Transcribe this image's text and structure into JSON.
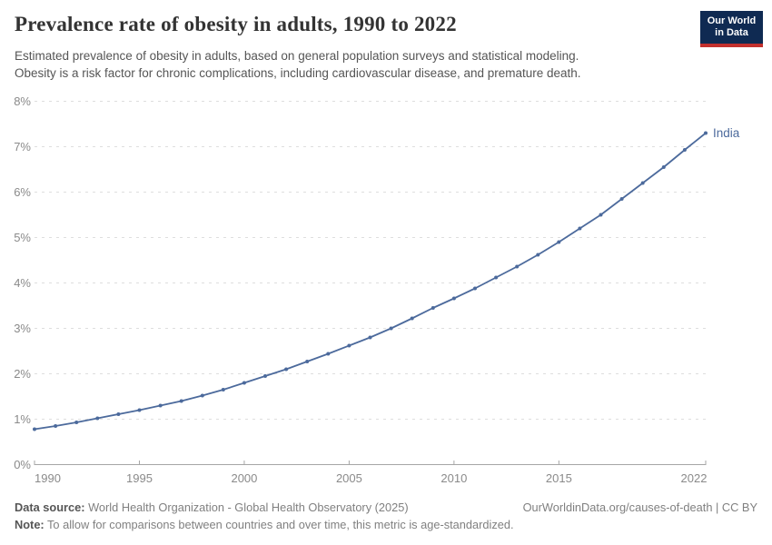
{
  "header": {
    "title": "Prevalence rate of obesity in adults, 1990 to 2022",
    "subtitle_line1": "Estimated prevalence of obesity in adults, based on general population surveys and statistical modeling.",
    "subtitle_line2": "Obesity is a risk factor for chronic complications, including cardiovascular disease, and premature death.",
    "logo": {
      "line1": "Our World",
      "line2": "in Data",
      "bg_color": "#0f2a52",
      "bar_color": "#c2302d"
    }
  },
  "chart_data": {
    "type": "line",
    "title": "Prevalence rate of obesity in adults, 1990 to 2022",
    "xlabel": "",
    "ylabel": "",
    "xlim": [
      1990,
      2022
    ],
    "ylim": [
      0,
      8
    ],
    "grid": "horizontal-dashed",
    "legend_position": "end-of-line-label",
    "x_ticks": [
      1990,
      1995,
      2000,
      2005,
      2010,
      2015,
      2022
    ],
    "y_ticks": [
      0,
      1,
      2,
      3,
      4,
      5,
      6,
      7,
      8
    ],
    "y_tick_suffix": "%",
    "series": [
      {
        "name": "India",
        "color": "#4C6A9C",
        "x": [
          1990,
          1991,
          1992,
          1993,
          1994,
          1995,
          1996,
          1997,
          1998,
          1999,
          2000,
          2001,
          2002,
          2003,
          2004,
          2005,
          2006,
          2007,
          2008,
          2009,
          2010,
          2011,
          2012,
          2013,
          2014,
          2015,
          2016,
          2017,
          2018,
          2019,
          2020,
          2021,
          2022
        ],
        "values": [
          0.78,
          0.85,
          0.93,
          1.02,
          1.11,
          1.2,
          1.3,
          1.4,
          1.52,
          1.65,
          1.8,
          1.95,
          2.1,
          2.27,
          2.44,
          2.62,
          2.8,
          3.0,
          3.22,
          3.45,
          3.66,
          3.88,
          4.12,
          4.36,
          4.62,
          4.9,
          5.2,
          5.5,
          5.85,
          6.2,
          6.55,
          6.93,
          7.3
        ]
      }
    ],
    "colors": {
      "grid_line": "#dedede",
      "axis_line": "#a6a6a6",
      "tick_label": "#8a8a8a"
    }
  },
  "footer": {
    "datasource_label": "Data source:",
    "datasource_value": " World Health Organization - Global Health Observatory (2025)",
    "link_text": "OurWorldinData.org/causes-of-death | CC BY",
    "note_label": "Note:",
    "note_value": " To allow for comparisons between countries and over time, this metric is age-standardized."
  }
}
